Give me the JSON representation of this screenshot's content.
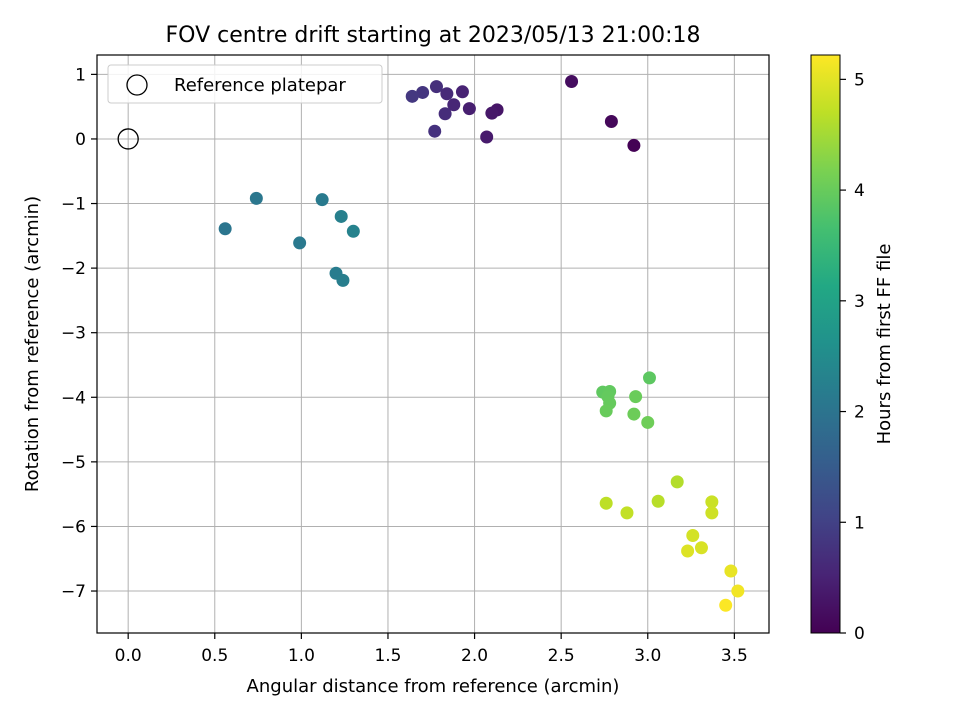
{
  "chart_data": {
    "type": "scatter",
    "title": "FOV centre drift starting at 2023/05/13 21:00:18",
    "xlabel": "Angular distance from reference (arcmin)",
    "ylabel": "Rotation from reference (arcmin)",
    "xlim": [
      -0.18,
      3.7
    ],
    "ylim": [
      -7.65,
      1.3
    ],
    "xticks": [
      0.0,
      0.5,
      1.0,
      1.5,
      2.0,
      2.5,
      3.0,
      3.5
    ],
    "xtick_labels": [
      "0.0",
      "0.5",
      "1.0",
      "1.5",
      "2.0",
      "2.5",
      "3.0",
      "3.5"
    ],
    "yticks": [
      1,
      0,
      -1,
      -2,
      -3,
      -4,
      -5,
      -6,
      -7
    ],
    "ytick_labels": [
      "1",
      "0",
      "−1",
      "−2",
      "−3",
      "−4",
      "−5",
      "−6",
      "−7"
    ],
    "grid": true,
    "legend": {
      "label": "Reference platepar",
      "position": "top-left"
    },
    "reference_point": {
      "x": 0.0,
      "y": 0.0
    },
    "colorbar": {
      "label": "Hours from first FF file",
      "range": [
        0,
        5.22
      ],
      "ticks": [
        0,
        1,
        2,
        3,
        4,
        5
      ],
      "tick_labels": [
        "0",
        "1",
        "2",
        "3",
        "4",
        "5"
      ],
      "colormap": "viridis"
    },
    "points": [
      {
        "x": 2.92,
        "y": -0.1,
        "hours": 0.02
      },
      {
        "x": 2.79,
        "y": 0.27,
        "hours": 0.1
      },
      {
        "x": 2.56,
        "y": 0.89,
        "hours": 0.18
      },
      {
        "x": 2.13,
        "y": 0.45,
        "hours": 0.3
      },
      {
        "x": 2.1,
        "y": 0.4,
        "hours": 0.34
      },
      {
        "x": 2.07,
        "y": 0.03,
        "hours": 0.38
      },
      {
        "x": 1.97,
        "y": 0.47,
        "hours": 0.44
      },
      {
        "x": 1.93,
        "y": 0.73,
        "hours": 0.5
      },
      {
        "x": 1.88,
        "y": 0.53,
        "hours": 0.56
      },
      {
        "x": 1.84,
        "y": 0.7,
        "hours": 0.62
      },
      {
        "x": 1.83,
        "y": 0.39,
        "hours": 0.66
      },
      {
        "x": 1.78,
        "y": 0.81,
        "hours": 0.7
      },
      {
        "x": 1.77,
        "y": 0.12,
        "hours": 0.74
      },
      {
        "x": 1.7,
        "y": 0.72,
        "hours": 0.8
      },
      {
        "x": 1.64,
        "y": 0.66,
        "hours": 0.85
      },
      {
        "x": 0.56,
        "y": -1.39,
        "hours": 2.02
      },
      {
        "x": 0.74,
        "y": -0.92,
        "hours": 2.06
      },
      {
        "x": 0.99,
        "y": -1.61,
        "hours": 2.1
      },
      {
        "x": 1.12,
        "y": -0.94,
        "hours": 2.14
      },
      {
        "x": 1.2,
        "y": -2.08,
        "hours": 2.18
      },
      {
        "x": 1.24,
        "y": -2.19,
        "hours": 2.22
      },
      {
        "x": 1.23,
        "y": -1.2,
        "hours": 2.26
      },
      {
        "x": 1.3,
        "y": -1.43,
        "hours": 2.3
      },
      {
        "x": 3.01,
        "y": -3.7,
        "hours": 3.9
      },
      {
        "x": 2.74,
        "y": -3.92,
        "hours": 3.92
      },
      {
        "x": 2.78,
        "y": -3.91,
        "hours": 3.94
      },
      {
        "x": 2.77,
        "y": -3.99,
        "hours": 3.96
      },
      {
        "x": 2.78,
        "y": -4.09,
        "hours": 3.98
      },
      {
        "x": 2.76,
        "y": -4.21,
        "hours": 4.0
      },
      {
        "x": 2.93,
        "y": -3.99,
        "hours": 4.02
      },
      {
        "x": 2.92,
        "y": -4.26,
        "hours": 4.04
      },
      {
        "x": 3.0,
        "y": -4.39,
        "hours": 4.06
      },
      {
        "x": 3.17,
        "y": -5.31,
        "hours": 4.62
      },
      {
        "x": 3.06,
        "y": -5.61,
        "hours": 4.66
      },
      {
        "x": 2.76,
        "y": -5.64,
        "hours": 4.7
      },
      {
        "x": 2.88,
        "y": -5.79,
        "hours": 4.74
      },
      {
        "x": 3.37,
        "y": -5.62,
        "hours": 4.8
      },
      {
        "x": 3.37,
        "y": -5.79,
        "hours": 4.84
      },
      {
        "x": 3.26,
        "y": -6.14,
        "hours": 4.88
      },
      {
        "x": 3.31,
        "y": -6.33,
        "hours": 4.92
      },
      {
        "x": 3.23,
        "y": -6.38,
        "hours": 4.96
      },
      {
        "x": 3.48,
        "y": -6.69,
        "hours": 5.05
      },
      {
        "x": 3.52,
        "y": -7.0,
        "hours": 5.12
      },
      {
        "x": 3.45,
        "y": -7.22,
        "hours": 5.2
      }
    ]
  }
}
